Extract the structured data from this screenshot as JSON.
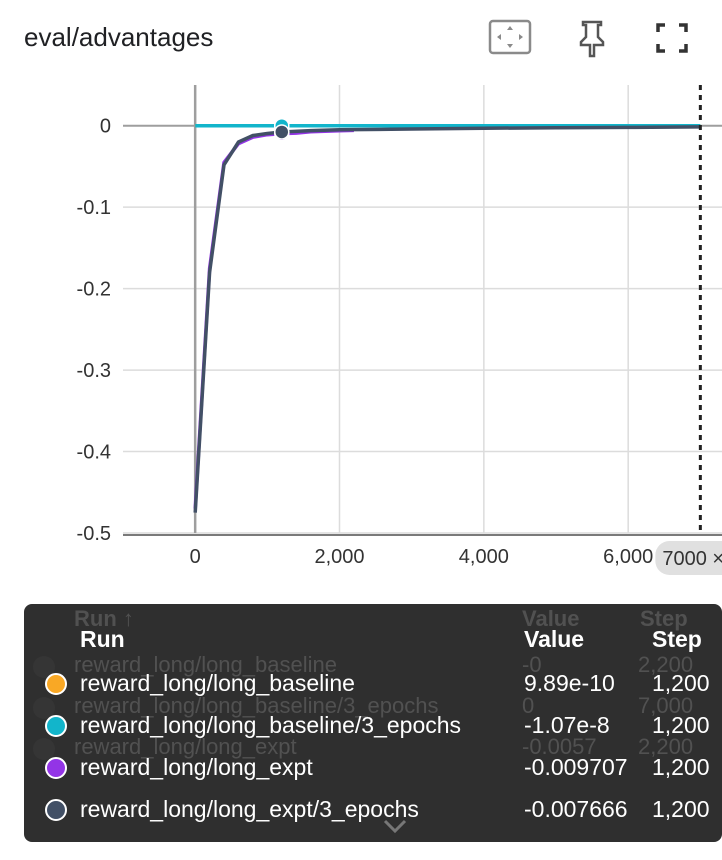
{
  "card": {
    "title": "eval/advantages"
  },
  "toolbar": {
    "fit_icon": "fit-domain-icon",
    "pin_icon": "pin-icon",
    "fullscreen_icon": "fullscreen-icon"
  },
  "chart_data": {
    "type": "line",
    "title": "eval/advantages",
    "xlabel": "",
    "ylabel": "",
    "xlim": [
      -1000,
      7300
    ],
    "ylim": [
      -0.5,
      0.05
    ],
    "x_ticks": [
      "0",
      "2,000",
      "4,000",
      "6,000"
    ],
    "y_ticks": [
      "0",
      "-0.1",
      "-0.2",
      "-0.3",
      "-0.4",
      "-0.5"
    ],
    "grid": true,
    "hover_step_label": "7000",
    "series": [
      {
        "name": "reward_long/long_baseline",
        "color": "#f9a825",
        "x": [
          0,
          7000
        ],
        "y": [
          0,
          0
        ]
      },
      {
        "name": "reward_long/long_baseline/3_epochs",
        "color": "#12b5cb",
        "x": [
          0,
          7000
        ],
        "y": [
          0,
          0
        ]
      },
      {
        "name": "reward_long/long_expt",
        "color": "#9334e6",
        "x": [
          0,
          200,
          400,
          600,
          800,
          1000,
          1200,
          1400,
          1600,
          1800,
          2000,
          2200
        ],
        "y": [
          -0.47,
          -0.175,
          -0.045,
          -0.022,
          -0.014,
          -0.011,
          -0.0097,
          -0.009,
          -0.0075,
          -0.0068,
          -0.0062,
          -0.0057
        ]
      },
      {
        "name": "reward_long/long_expt/3_epochs",
        "color": "#425066",
        "x": [
          0,
          200,
          400,
          600,
          800,
          1000,
          1200,
          1600,
          2000,
          3000,
          4000,
          5000,
          6000,
          7000
        ],
        "y": [
          -0.475,
          -0.18,
          -0.048,
          -0.02,
          -0.012,
          -0.0095,
          -0.0077,
          -0.006,
          -0.005,
          -0.004,
          -0.003,
          -0.0025,
          -0.002,
          -0.0015
        ]
      }
    ],
    "hover_x": 1200
  },
  "tooltip": {
    "headers": {
      "run": "Run",
      "value": "Value",
      "step": "Step"
    },
    "ghost_headers": {
      "run": "Run ↑",
      "value": "Value",
      "step": "Step"
    },
    "rows": [
      {
        "name": "reward_long/long_baseline",
        "value": "9.89e-10",
        "step": "1,200",
        "color": "#f9a825"
      },
      {
        "name": "reward_long/long_baseline/3_epochs",
        "value": "-1.07e-8",
        "step": "1,200",
        "color": "#12b5cb"
      },
      {
        "name": "reward_long/long_expt",
        "value": "-0.009707",
        "step": "1,200",
        "color": "#9334e6"
      },
      {
        "name": "reward_long/long_expt/3_epochs",
        "value": "-0.007666",
        "step": "1,200",
        "color": "#425066"
      }
    ],
    "ghost_rows": [
      {
        "name": "reward_long/long_baseline",
        "value": "-0",
        "step": "2,200"
      },
      {
        "name": "reward_long/long_baseline/3_epochs",
        "value": "0",
        "step": "7,000"
      },
      {
        "name": "reward_long/long_expt",
        "value": "-0.0057",
        "step": "2,200"
      }
    ],
    "more_icon": "chevron-down-icon"
  }
}
